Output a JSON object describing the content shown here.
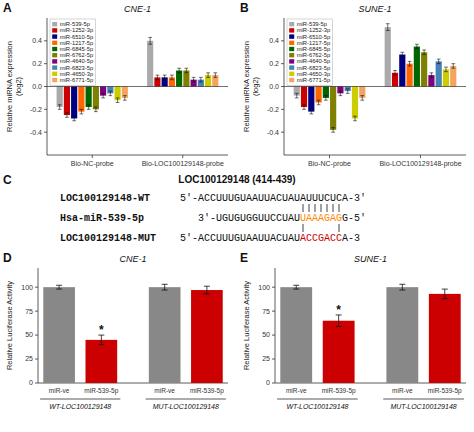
{
  "chart_data": [
    {
      "type": "bar",
      "title": "CNE-1",
      "ylabel": "Relative miRNA expression\n(log2)",
      "categories": [
        "Bio-NC-probe",
        "Bio-LOC100129148-probe"
      ],
      "series": [
        {
          "name": "miR-539-5p",
          "color": "#aaaaaa",
          "values": [
            -0.18,
            0.4
          ],
          "errors": [
            0.02,
            0.03
          ]
        },
        {
          "name": "miR-1252-3p",
          "color": "#cc0000",
          "values": [
            -0.25,
            0.08
          ],
          "errors": [
            0.02,
            0.02
          ]
        },
        {
          "name": "miR-6510-5p",
          "color": "#000080",
          "values": [
            -0.28,
            0.08
          ],
          "errors": [
            0.02,
            0.02
          ]
        },
        {
          "name": "miR-1217-5p",
          "color": "#ff6600",
          "values": [
            -0.22,
            0.08
          ],
          "errors": [
            0.02,
            0.02
          ]
        },
        {
          "name": "miR-6845-5p",
          "color": "#006600",
          "values": [
            -0.18,
            0.14
          ],
          "errors": [
            0.02,
            0.02
          ]
        },
        {
          "name": "miR-6762-5p",
          "color": "#808000",
          "values": [
            -0.2,
            0.14
          ],
          "errors": [
            0.02,
            0.02
          ]
        },
        {
          "name": "miR-4640-5p",
          "color": "#800080",
          "values": [
            -0.08,
            0.06
          ],
          "errors": [
            0.02,
            0.02
          ]
        },
        {
          "name": "miR-6823-5p",
          "color": "#4682b4",
          "values": [
            -0.06,
            0.06
          ],
          "errors": [
            0.02,
            0.02
          ]
        },
        {
          "name": "miR-4650-3p",
          "color": "#cccc00",
          "values": [
            -0.12,
            0.1
          ],
          "errors": [
            0.02,
            0.02
          ]
        },
        {
          "name": "miR-6771-5p",
          "color": "#f4a460",
          "values": [
            -0.1,
            0.1
          ],
          "errors": [
            0.02,
            0.02
          ]
        }
      ],
      "ylim": [
        -0.6,
        0.6
      ],
      "yticks": [
        -0.4,
        -0.2,
        {
          "value": 0.0,
          "label": "0.0"
        },
        0.2,
        0.4
      ],
      "legend": "upper left",
      "annotations": [
        {
          "text": "A"
        }
      ]
    },
    {
      "type": "bar",
      "title": "SUNE-1",
      "ylabel": "Relative miRNA expression\n(log2)",
      "categories": [
        "Bio-NC-probe",
        "Bio-LOC100129148-probe"
      ],
      "series": [
        {
          "name": "miR-539-5p",
          "color": "#aaaaaa",
          "values": [
            -0.08,
            0.52
          ],
          "errors": [
            0.02,
            0.03
          ]
        },
        {
          "name": "miR-1252-3p",
          "color": "#cc0000",
          "values": [
            -0.18,
            0.12
          ],
          "errors": [
            0.02,
            0.02
          ]
        },
        {
          "name": "miR-6510-5p",
          "color": "#000080",
          "values": [
            -0.22,
            0.28
          ],
          "errors": [
            0.02,
            0.02
          ]
        },
        {
          "name": "miR-1217-5p",
          "color": "#ff6600",
          "values": [
            -0.14,
            0.2
          ],
          "errors": [
            0.02,
            0.02
          ]
        },
        {
          "name": "miR-6845-5p",
          "color": "#006600",
          "values": [
            -0.1,
            0.35
          ],
          "errors": [
            0.02,
            0.02
          ]
        },
        {
          "name": "miR-6762-5p",
          "color": "#808000",
          "values": [
            -0.38,
            0.3
          ],
          "errors": [
            0.02,
            0.02
          ]
        },
        {
          "name": "miR-4640-5p",
          "color": "#800080",
          "values": [
            -0.06,
            0.1
          ],
          "errors": [
            0.02,
            0.02
          ]
        },
        {
          "name": "miR-6823-5p",
          "color": "#4682b4",
          "values": [
            -0.04,
            0.22
          ],
          "errors": [
            0.02,
            0.02
          ]
        },
        {
          "name": "miR-4650-3p",
          "color": "#cccc00",
          "values": [
            -0.28,
            0.15
          ],
          "errors": [
            0.02,
            0.02
          ]
        },
        {
          "name": "miR-6771-5p",
          "color": "#f4a460",
          "values": [
            -0.1,
            0.18
          ],
          "errors": [
            0.02,
            0.02
          ]
        }
      ],
      "ylim": [
        -0.6,
        0.6
      ],
      "yticks": [
        -0.4,
        -0.2,
        {
          "value": 0.0,
          "label": "0.0"
        },
        0.2,
        0.4
      ],
      "legend": "upper left",
      "annotations": [
        {
          "text": "B"
        }
      ]
    },
    {
      "type": "sequence_alignment",
      "title": "LOC100129148 (414-439)",
      "categories": [
        "LOC100129148-WT",
        "Hsa-miR-539-5p",
        "LOC100129148-MUT"
      ],
      "sequences": [
        [
          {
            "text": "5'-ACCUUUGUAAUUACUAUAUUUCUCA-3'"
          }
        ],
        [
          {
            "text": "3'-UGUGUGGUUCCUAU"
          },
          {
            "text": "UAAAGAG",
            "color": "#ff8800"
          },
          {
            "text": "G-5'"
          }
        ],
        [
          {
            "text": "5'-ACCUUUGUAAUUACUAU"
          },
          {
            "text": "ACCGACC",
            "color": "#cc0000"
          },
          {
            "text": "A-3"
          }
        ]
      ],
      "annotations": [
        {
          "text": "C"
        }
      ]
    },
    {
      "type": "bar",
      "title": "CNE-1",
      "ylabel": "Relative Luciferase Activity",
      "categories": [
        "miR-ve",
        "miR-539-5p",
        "miR-ve",
        "miR-539-5p"
      ],
      "values": [
        100,
        45,
        100,
        97
      ],
      "errors": [
        2,
        5,
        3,
        4
      ],
      "colors": [
        "#888888",
        "#cc0000",
        "#888888",
        "#cc0000"
      ],
      "ylim": [
        0,
        120
      ],
      "yticks": [
        0,
        25,
        50,
        75,
        100
      ],
      "annotations": [
        {
          "text": "D"
        },
        {
          "text": "*",
          "at": 1
        },
        {
          "text": "WT-LOC100129148",
          "span": [
            0,
            1
          ]
        },
        {
          "text": "MUT-LOC100129148",
          "span": [
            2,
            3
          ]
        }
      ]
    },
    {
      "type": "bar",
      "title": "SUNE-1",
      "ylabel": "Relative Luciferase Activity",
      "categories": [
        "miR-ve",
        "miR-539-5p",
        "miR-ve",
        "miR-539-5p"
      ],
      "values": [
        100,
        65,
        100,
        93
      ],
      "errors": [
        2,
        6,
        3,
        5
      ],
      "colors": [
        "#888888",
        "#cc0000",
        "#888888",
        "#cc0000"
      ],
      "ylim": [
        0,
        120
      ],
      "yticks": [
        0,
        25,
        50,
        75,
        100
      ],
      "annotations": [
        {
          "text": "E"
        },
        {
          "text": "*",
          "at": 1
        },
        {
          "text": "WT-LOC100129148",
          "span": [
            0,
            1
          ]
        },
        {
          "text": "MUT-LOC100129148",
          "span": [
            2,
            3
          ]
        }
      ]
    }
  ]
}
